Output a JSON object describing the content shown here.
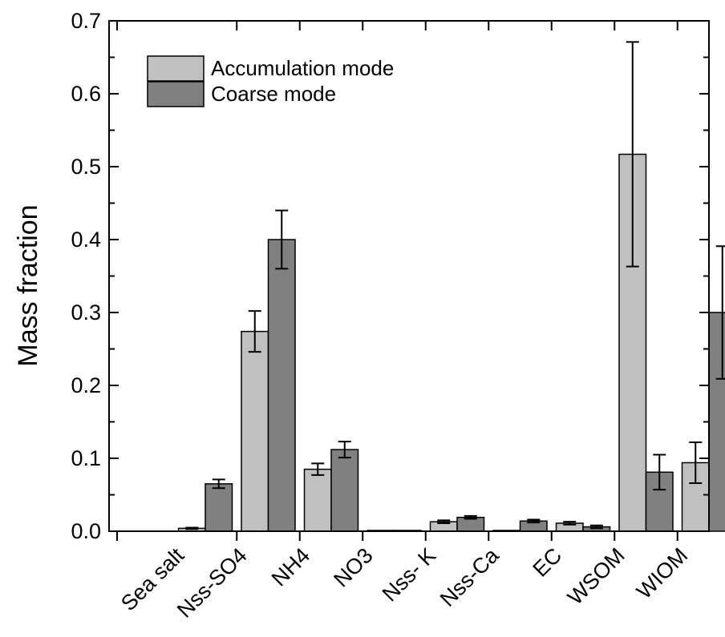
{
  "chart_data": {
    "type": "bar",
    "title": "",
    "xlabel": "",
    "ylabel": "Mass fraction",
    "ylim": [
      0,
      0.7
    ],
    "yticks": [
      "0.0",
      "0.1",
      "0.2",
      "0.3",
      "0.4",
      "0.5",
      "0.6",
      "0.7"
    ],
    "grid": false,
    "legend_position": "top-left",
    "categories": [
      "Sea salt",
      "Nss-SO4",
      "NH4",
      "NO3",
      "Nss- K",
      "Nss-Ca",
      "EC",
      "WSOM",
      "WIOM"
    ],
    "series": [
      {
        "name": "Accumulation mode",
        "color": "#c0c0c0",
        "values": [
          0.004,
          0.274,
          0.085,
          0.001,
          0.013,
          0.001,
          0.011,
          0.517,
          0.094
        ],
        "errors": [
          0.001,
          0.028,
          0.008,
          0.0,
          0.002,
          0.0,
          0.002,
          0.154,
          0.028
        ]
      },
      {
        "name": "Coarse mode",
        "color": "#808080",
        "values": [
          0.065,
          0.4,
          0.112,
          0.0,
          0.019,
          0.014,
          0.006,
          0.081,
          0.3
        ],
        "errors": [
          0.006,
          0.04,
          0.011,
          0.0,
          0.002,
          0.002,
          0.002,
          0.024,
          0.091
        ]
      }
    ]
  }
}
